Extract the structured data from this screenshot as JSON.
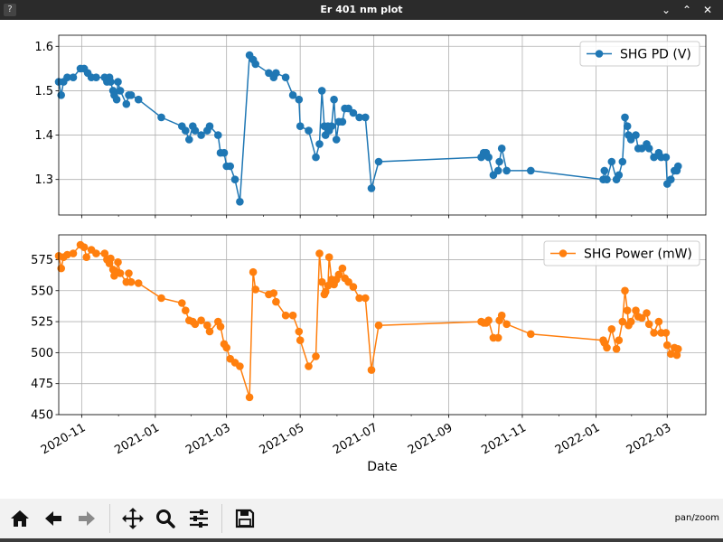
{
  "window": {
    "title": "Er 401 nm plot"
  },
  "toolbar": {
    "mode_text": "pan/zoom"
  },
  "chart_data": [
    {
      "type": "line",
      "xlabel": "",
      "ylabel": "",
      "ylim": [
        1.22,
        1.625
      ],
      "xlim": [
        "2020-10-13",
        "2022-04-02"
      ],
      "yticks": [
        1.3,
        1.4,
        1.5,
        1.6
      ],
      "ytick_labels": [
        "1.3",
        "1.4",
        "1.5",
        "1.6"
      ],
      "grid": true,
      "legend": "top-right",
      "series": [
        {
          "name": "SHG PD (V)",
          "color": "#1f77b4",
          "x": [
            "2020-10-13",
            "2020-10-15",
            "2020-10-17",
            "2020-10-20",
            "2020-10-25",
            "2020-10-31",
            "2020-11-03",
            "2020-11-06",
            "2020-11-09",
            "2020-11-13",
            "2020-11-20",
            "2020-11-22",
            "2020-11-24",
            "2020-11-25",
            "2020-11-27",
            "2020-11-28",
            "2020-11-30",
            "2020-12-01",
            "2020-12-03",
            "2020-12-08",
            "2020-12-10",
            "2020-12-12",
            "2020-12-18",
            "2021-01-06",
            "2021-01-23",
            "2021-01-26",
            "2021-01-29",
            "2021-02-01",
            "2021-02-03",
            "2021-02-08",
            "2021-02-13",
            "2021-02-15",
            "2021-02-22",
            "2021-02-24",
            "2021-02-27",
            "2021-03-01",
            "2021-03-04",
            "2021-03-08",
            "2021-03-12",
            "2021-03-20",
            "2021-03-23",
            "2021-03-25",
            "2021-04-05",
            "2021-04-09",
            "2021-04-11",
            "2021-04-19",
            "2021-04-25",
            "2021-04-30",
            "2021-05-01",
            "2021-05-08",
            "2021-05-14",
            "2021-05-17",
            "2021-05-19",
            "2021-05-21",
            "2021-05-22",
            "2021-05-24",
            "2021-05-25",
            "2021-05-27",
            "2021-05-29",
            "2021-05-31",
            "2021-06-02",
            "2021-06-05",
            "2021-06-07",
            "2021-06-10",
            "2021-06-14",
            "2021-06-19",
            "2021-06-24",
            "2021-06-29",
            "2021-07-05",
            "2021-09-28",
            "2021-09-30",
            "2021-10-02",
            "2021-10-04",
            "2021-10-08",
            "2021-10-12",
            "2021-10-13",
            "2021-10-15",
            "2021-10-19",
            "2021-11-08",
            "2022-01-07",
            "2022-01-08",
            "2022-01-10",
            "2022-01-14",
            "2022-01-18",
            "2022-01-20",
            "2022-01-23",
            "2022-01-25",
            "2022-01-27",
            "2022-01-28",
            "2022-01-30",
            "2022-02-03",
            "2022-02-05",
            "2022-02-08",
            "2022-02-12",
            "2022-02-14",
            "2022-02-18",
            "2022-02-22",
            "2022-02-24",
            "2022-02-28",
            "2022-03-01",
            "2022-03-04",
            "2022-03-07",
            "2022-03-09",
            "2022-03-10"
          ],
          "y": [
            1.52,
            1.49,
            1.52,
            1.53,
            1.53,
            1.55,
            1.55,
            1.54,
            1.53,
            1.53,
            1.53,
            1.52,
            1.53,
            1.52,
            1.5,
            1.49,
            1.48,
            1.52,
            1.5,
            1.47,
            1.49,
            1.49,
            1.48,
            1.44,
            1.42,
            1.41,
            1.39,
            1.42,
            1.41,
            1.4,
            1.41,
            1.42,
            1.4,
            1.36,
            1.36,
            1.33,
            1.33,
            1.3,
            1.25,
            1.58,
            1.57,
            1.56,
            1.54,
            1.53,
            1.54,
            1.53,
            1.49,
            1.48,
            1.42,
            1.41,
            1.35,
            1.38,
            1.5,
            1.42,
            1.4,
            1.42,
            1.41,
            1.42,
            1.48,
            1.39,
            1.43,
            1.43,
            1.46,
            1.46,
            1.45,
            1.44,
            1.44,
            1.28,
            1.34,
            1.35,
            1.36,
            1.36,
            1.35,
            1.31,
            1.32,
            1.34,
            1.37,
            1.32,
            1.32,
            1.3,
            1.32,
            1.3,
            1.34,
            1.3,
            1.31,
            1.34,
            1.44,
            1.42,
            1.4,
            1.39,
            1.4,
            1.37,
            1.37,
            1.38,
            1.37,
            1.35,
            1.36,
            1.35,
            1.35,
            1.29,
            1.3,
            1.32,
            1.32,
            1.33
          ]
        }
      ]
    },
    {
      "type": "line",
      "xlabel": "Date",
      "ylabel": "",
      "ylim": [
        450,
        595
      ],
      "xlim": [
        "2020-10-13",
        "2022-04-02"
      ],
      "yticks": [
        450,
        475,
        500,
        525,
        550,
        575
      ],
      "ytick_labels": [
        "450",
        "475",
        "500",
        "525",
        "550",
        "575"
      ],
      "xticks": [
        "2020-11-01",
        "2021-01-01",
        "2021-03-01",
        "2021-05-01",
        "2021-07-01",
        "2021-09-01",
        "2021-11-01",
        "2022-01-01",
        "2022-03-01"
      ],
      "xtick_labels": [
        "2020-11",
        "2021-01",
        "2021-03",
        "2021-05",
        "2021-07",
        "2021-09",
        "2021-11",
        "2022-01",
        "2022-03"
      ],
      "grid": true,
      "legend": "top-right",
      "series": [
        {
          "name": "SHG Power (mW)",
          "color": "#ff7f0e",
          "x": [
            "2020-10-13",
            "2020-10-15",
            "2020-10-17",
            "2020-10-20",
            "2020-10-25",
            "2020-10-31",
            "2020-11-03",
            "2020-11-05",
            "2020-11-09",
            "2020-11-13",
            "2020-11-20",
            "2020-11-22",
            "2020-11-24",
            "2020-11-25",
            "2020-11-27",
            "2020-11-28",
            "2020-11-30",
            "2020-12-01",
            "2020-12-03",
            "2020-12-08",
            "2020-12-10",
            "2020-12-12",
            "2020-12-18",
            "2021-01-06",
            "2021-01-23",
            "2021-01-26",
            "2021-01-29",
            "2021-02-01",
            "2021-02-03",
            "2021-02-08",
            "2021-02-13",
            "2021-02-15",
            "2021-02-22",
            "2021-02-24",
            "2021-02-27",
            "2021-03-01",
            "2021-03-04",
            "2021-03-08",
            "2021-03-12",
            "2021-03-20",
            "2021-03-23",
            "2021-03-25",
            "2021-04-05",
            "2021-04-09",
            "2021-04-11",
            "2021-04-19",
            "2021-04-25",
            "2021-04-30",
            "2021-05-01",
            "2021-05-08",
            "2021-05-14",
            "2021-05-17",
            "2021-05-19",
            "2021-05-21",
            "2021-05-22",
            "2021-05-24",
            "2021-05-25",
            "2021-05-27",
            "2021-05-29",
            "2021-05-31",
            "2021-06-02",
            "2021-06-05",
            "2021-06-07",
            "2021-06-10",
            "2021-06-14",
            "2021-06-19",
            "2021-06-24",
            "2021-06-29",
            "2021-07-05",
            "2021-09-28",
            "2021-09-30",
            "2021-10-02",
            "2021-10-04",
            "2021-10-08",
            "2021-10-12",
            "2021-10-13",
            "2021-10-15",
            "2021-10-19",
            "2021-11-08",
            "2022-01-07",
            "2022-01-08",
            "2022-01-10",
            "2022-01-14",
            "2022-01-18",
            "2022-01-20",
            "2022-01-23",
            "2022-01-25",
            "2022-01-27",
            "2022-01-28",
            "2022-01-30",
            "2022-02-03",
            "2022-02-05",
            "2022-02-08",
            "2022-02-12",
            "2022-02-14",
            "2022-02-18",
            "2022-02-22",
            "2022-02-24",
            "2022-02-28",
            "2022-03-01",
            "2022-03-04",
            "2022-03-07",
            "2022-03-09",
            "2022-03-10"
          ],
          "y": [
            578,
            568,
            577,
            579,
            580,
            587,
            585,
            577,
            583,
            580,
            580,
            575,
            572,
            576,
            567,
            562,
            565,
            573,
            564,
            557,
            564,
            557,
            556,
            544,
            540,
            534,
            526,
            525,
            523,
            526,
            522,
            517,
            525,
            521,
            507,
            504,
            495,
            492,
            489,
            464,
            565,
            551,
            547,
            548,
            541,
            530,
            530,
            517,
            510,
            489,
            497,
            580,
            557,
            547,
            549,
            554,
            577,
            559,
            555,
            559,
            563,
            568,
            560,
            557,
            553,
            544,
            544,
            486,
            522,
            525,
            524,
            524,
            526,
            512,
            512,
            526,
            530,
            523,
            515,
            510,
            508,
            504,
            519,
            503,
            510,
            525,
            550,
            534,
            522,
            525,
            534,
            529,
            528,
            532,
            523,
            516,
            525,
            516,
            516,
            506,
            499,
            504,
            498,
            503
          ]
        }
      ]
    }
  ]
}
